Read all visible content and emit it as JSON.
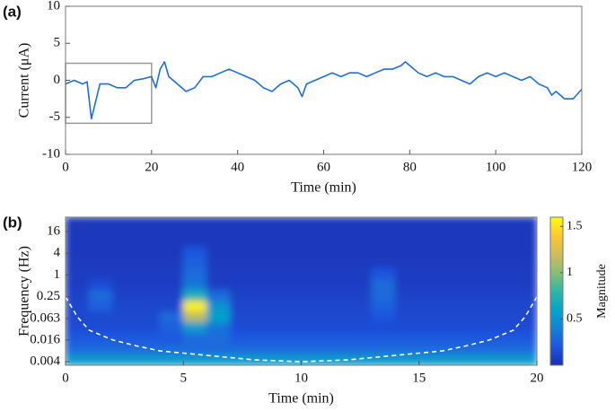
{
  "chart_data": [
    {
      "type": "line",
      "panel_label": "(a)",
      "xlabel": "Time (min)",
      "ylabel": "Current (μA)",
      "xlim": [
        0,
        120
      ],
      "ylim": [
        -10,
        10
      ],
      "xticks": [
        0,
        20,
        40,
        60,
        80,
        100,
        120
      ],
      "yticks": [
        -10,
        -5,
        0,
        5,
        10
      ],
      "color": "#1f6fd6",
      "x": [
        0,
        2,
        4,
        5,
        6,
        8,
        10,
        12,
        14,
        16,
        18,
        20,
        21,
        22,
        23,
        24,
        26,
        28,
        30,
        32,
        34,
        36,
        38,
        40,
        42,
        44,
        46,
        48,
        50,
        52,
        54,
        55,
        56,
        58,
        60,
        62,
        64,
        66,
        68,
        70,
        72,
        74,
        76,
        78,
        79,
        80,
        82,
        84,
        86,
        88,
        90,
        92,
        94,
        96,
        98,
        100,
        102,
        104,
        106,
        108,
        110,
        112,
        113,
        114,
        116,
        118,
        120
      ],
      "values": [
        -0.5,
        0,
        -0.5,
        -0.2,
        -5.2,
        -0.5,
        -0.5,
        -1,
        -1,
        0,
        0.2,
        0.5,
        -1,
        1.5,
        2.5,
        0.5,
        -0.5,
        -1.5,
        -1,
        0.5,
        0.5,
        1,
        1.5,
        1,
        0.5,
        0,
        -1,
        -1.5,
        -0.5,
        0,
        -1,
        -2.2,
        -0.5,
        0,
        0.5,
        1,
        0.5,
        1,
        1,
        0.5,
        1,
        1.5,
        1.5,
        2,
        2.5,
        2,
        1,
        0.5,
        1,
        0.5,
        0.5,
        0,
        -0.5,
        0.5,
        1,
        0.5,
        1,
        0.5,
        0,
        0.5,
        -0.5,
        -1,
        -2,
        -1.5,
        -2.5,
        -2.5,
        -1.2
      ],
      "highlight_box": {
        "xlim": [
          0,
          20
        ],
        "ylim": [
          -5.8,
          2.3
        ],
        "color": "#999999"
      }
    },
    {
      "type": "heatmap",
      "panel_label": "(b)",
      "xlabel": "Time (min)",
      "ylabel": "Frequency (Hz)",
      "xlim": [
        0,
        20
      ],
      "ylim": [
        0.0032,
        40
      ],
      "log_y": true,
      "xticks": [
        0,
        5,
        10,
        15,
        20
      ],
      "yticks": [
        0.004,
        0.016,
        0.063,
        0.25,
        1,
        4,
        16
      ],
      "xbins": [
        0,
        1,
        2,
        3,
        4,
        5,
        6,
        7,
        8,
        9,
        10,
        11,
        12,
        13,
        14,
        15,
        16,
        17,
        18,
        19,
        20
      ],
      "ybins": [
        0.0032,
        0.0065,
        0.013,
        0.026,
        0.052,
        0.1,
        0.2,
        0.4,
        0.8,
        1.6,
        3.2,
        6.4,
        13,
        40
      ],
      "z": [
        [
          0.55,
          0.55,
          0.55,
          0.55,
          0.55,
          0.55,
          0.55,
          0.55,
          0.55,
          0.55,
          0.55,
          0.55,
          0.55,
          0.55,
          0.55,
          0.55,
          0.55,
          0.55,
          0.55,
          0.55
        ],
        [
          0.3,
          0.3,
          0.3,
          0.3,
          0.3,
          0.3,
          0.3,
          0.3,
          0.3,
          0.3,
          0.3,
          0.3,
          0.3,
          0.3,
          0.3,
          0.3,
          0.3,
          0.3,
          0.3,
          0.3
        ],
        [
          0.22,
          0.22,
          0.22,
          0.22,
          0.22,
          0.3,
          0.3,
          0.22,
          0.22,
          0.22,
          0.22,
          0.22,
          0.22,
          0.22,
          0.22,
          0.22,
          0.22,
          0.22,
          0.22,
          0.22
        ],
        [
          0.15,
          0.15,
          0.15,
          0.15,
          0.25,
          0.55,
          0.35,
          0.15,
          0.15,
          0.15,
          0.15,
          0.15,
          0.15,
          0.15,
          0.15,
          0.15,
          0.15,
          0.15,
          0.15,
          0.15
        ],
        [
          0.13,
          0.13,
          0.13,
          0.13,
          0.3,
          1.15,
          0.6,
          0.13,
          0.13,
          0.13,
          0.13,
          0.13,
          0.13,
          0.2,
          0.13,
          0.13,
          0.13,
          0.13,
          0.13,
          0.13
        ],
        [
          0.12,
          0.25,
          0.12,
          0.12,
          0.12,
          1.55,
          0.5,
          0.12,
          0.12,
          0.12,
          0.12,
          0.12,
          0.12,
          0.25,
          0.12,
          0.12,
          0.12,
          0.12,
          0.12,
          0.12
        ],
        [
          0.1,
          0.3,
          0.1,
          0.1,
          0.1,
          0.7,
          0.3,
          0.1,
          0.1,
          0.1,
          0.1,
          0.1,
          0.1,
          0.3,
          0.1,
          0.1,
          0.1,
          0.1,
          0.1,
          0.1
        ],
        [
          0.08,
          0.15,
          0.08,
          0.08,
          0.08,
          0.35,
          0.08,
          0.08,
          0.08,
          0.08,
          0.08,
          0.08,
          0.08,
          0.3,
          0.08,
          0.08,
          0.08,
          0.08,
          0.08,
          0.08
        ],
        [
          0.07,
          0.07,
          0.07,
          0.07,
          0.07,
          0.3,
          0.07,
          0.07,
          0.07,
          0.07,
          0.07,
          0.07,
          0.07,
          0.2,
          0.07,
          0.07,
          0.07,
          0.07,
          0.07,
          0.07
        ],
        [
          0.06,
          0.06,
          0.06,
          0.06,
          0.06,
          0.25,
          0.06,
          0.06,
          0.06,
          0.06,
          0.06,
          0.06,
          0.06,
          0.06,
          0.06,
          0.06,
          0.06,
          0.06,
          0.06,
          0.06
        ],
        [
          0.05,
          0.05,
          0.05,
          0.05,
          0.05,
          0.2,
          0.05,
          0.05,
          0.05,
          0.05,
          0.05,
          0.05,
          0.05,
          0.05,
          0.05,
          0.05,
          0.05,
          0.05,
          0.05,
          0.05
        ],
        [
          0.05,
          0.05,
          0.05,
          0.05,
          0.05,
          0.05,
          0.05,
          0.05,
          0.05,
          0.05,
          0.05,
          0.05,
          0.05,
          0.05,
          0.05,
          0.05,
          0.05,
          0.05,
          0.05,
          0.05
        ],
        [
          0.05,
          0.05,
          0.05,
          0.05,
          0.05,
          0.05,
          0.05,
          0.05,
          0.05,
          0.05,
          0.05,
          0.05,
          0.05,
          0.05,
          0.05,
          0.05,
          0.05,
          0.05,
          0.05,
          0.05
        ]
      ],
      "colormap": [
        "#1a2fb0",
        "#1f55e0",
        "#1481d6",
        "#06a4ca",
        "#2eb7a4",
        "#87bf77",
        "#d1bb59",
        "#fec832",
        "#f9fb0e"
      ],
      "colorbar": {
        "lim": [
          0,
          1.6
        ],
        "ticks": [
          0.5,
          1,
          1.5
        ],
        "label": "Magnitude"
      },
      "coi": {
        "color": "#ffffff",
        "x": [
          0,
          0.5,
          1,
          2,
          3,
          4,
          6,
          8,
          10,
          12,
          14,
          16,
          17,
          18,
          19,
          19.5,
          20
        ],
        "y": [
          0.25,
          0.07,
          0.03,
          0.016,
          0.011,
          0.008,
          0.006,
          0.0045,
          0.004,
          0.0045,
          0.006,
          0.008,
          0.011,
          0.016,
          0.03,
          0.07,
          0.25
        ]
      }
    }
  ]
}
